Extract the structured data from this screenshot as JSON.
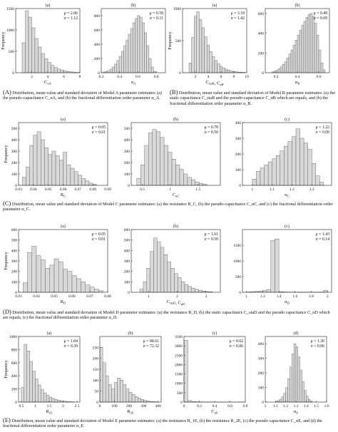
{
  "colors": {
    "bar_fill": "#d9d9d9",
    "bar_stroke": "#555555",
    "axis": "#222222",
    "text": "#111111"
  },
  "captions": {
    "A": {
      "tag": "(A)",
      "text": "Distribution, mean value and standard deviation of Model A parameter estimates: (a) the pseudo-capacitance C_αA, and (b) the fractional differentiation order parameter α_A."
    },
    "B": {
      "tag": "(B)",
      "text": "Distribution, mean value and standard deviation of Model B parameter estimates: (a) the static capacitance C_staB and the pseudo-capacitance C_αB which are equals, and (b) the fractional differentiation order parameter α_B."
    },
    "C": {
      "tag": "(C)",
      "text": "Distribution, mean value and standard deviation of Model C parameter estimates: (a) the resistance R_C, (b) the pseudo-capacitance C_αC, and (c) the fractional differentiation order parameter α_C."
    },
    "D": {
      "tag": "(D)",
      "text": "Distribution, mean value and standard deviation of Model D parameter estimates: (a) the resistance R_D, (b) the static capacitance C_staD and the pseudo capacitance C_αD which are equals, (c) the fractional differentiation order parameter α_D."
    },
    "E": {
      "tag": "(E)",
      "text": "Distribution, mean value and standard deviation of Model E parameter estimates: (a) the resistance R_1E, (b) the resistance R_2E, (c) the pseudo capacitance C_αE, and (d) the fractional differentiation order parameter α_E."
    }
  },
  "chart_data": [
    {
      "type": "bar",
      "panel": "A(a)",
      "subtitle": "(a)",
      "ylabel": "Frequency",
      "xlabel": "C_αA",
      "stats": [
        "μ = 2.06",
        "σ = 1.12"
      ],
      "xlim": [
        0,
        8
      ],
      "ylim": [
        0,
        1500
      ],
      "xticks": [
        2,
        4,
        6,
        8
      ],
      "yticks": [
        0,
        500,
        1000,
        1500
      ],
      "bin_start": 0.8,
      "bin_width": 0.4,
      "values": [
        700,
        1450,
        1300,
        1050,
        800,
        600,
        450,
        330,
        240,
        170,
        120,
        85,
        60,
        40,
        28,
        18,
        10,
        6
      ]
    },
    {
      "type": "bar",
      "panel": "A(b)",
      "subtitle": "(b)",
      "ylabel": "",
      "xlabel": "α_A",
      "stats": [
        "μ = 0.58",
        "σ = 0.11"
      ],
      "xlim": [
        0.2,
        0.9
      ],
      "ylim": [
        0,
        900
      ],
      "xticks": [
        0.2,
        0.4,
        0.6,
        0.8
      ],
      "yticks": [
        0,
        200,
        400,
        600,
        800
      ],
      "bin_start": 0.22,
      "bin_width": 0.025,
      "values": [
        10,
        18,
        30,
        50,
        80,
        120,
        170,
        230,
        300,
        380,
        460,
        540,
        620,
        700,
        760,
        800,
        780,
        700,
        560,
        380,
        200,
        80,
        20
      ]
    },
    {
      "type": "bar",
      "panel": "B(a)",
      "subtitle": "(a)",
      "ylabel": "Frequency",
      "xlabel": "C_staB, C_αB",
      "stats": [
        "μ = 3.18",
        "σ = 1.42"
      ],
      "xlim": [
        0,
        10
      ],
      "ylim": [
        0,
        1000
      ],
      "xticks": [
        2,
        4,
        6,
        8,
        10
      ],
      "yticks": [
        0,
        500,
        1000
      ],
      "bin_start": 1.0,
      "bin_width": 0.4,
      "values": [
        150,
        550,
        880,
        950,
        830,
        700,
        560,
        430,
        330,
        250,
        190,
        140,
        100,
        75,
        55,
        40,
        28,
        20,
        14,
        10,
        7,
        5
      ]
    },
    {
      "type": "bar",
      "panel": "B(b)",
      "subtitle": "(b)",
      "ylabel": "",
      "xlabel": "α_B",
      "stats": [
        "μ = 0.49",
        "σ = 0.09"
      ],
      "xlim": [
        0.1,
        0.7
      ],
      "ylim": [
        0,
        650
      ],
      "xticks": [
        0.2,
        0.4,
        0.6
      ],
      "yticks": [
        0,
        200,
        400,
        600
      ],
      "bin_start": 0.16,
      "bin_width": 0.02,
      "values": [
        8,
        15,
        25,
        40,
        60,
        85,
        110,
        150,
        190,
        230,
        280,
        330,
        380,
        430,
        480,
        520,
        560,
        590,
        600,
        570,
        500,
        380,
        230,
        100,
        30
      ]
    },
    {
      "type": "bar",
      "panel": "C(a)",
      "subtitle": "(a)",
      "ylabel": "Frequency",
      "xlabel": "R_C",
      "stats": [
        "μ = 0.05",
        "σ = 0.01"
      ],
      "xlim": [
        0.03,
        0.09
      ],
      "ylim": [
        0,
        550
      ],
      "xticks": [
        0.03,
        0.04,
        0.05,
        0.06,
        0.07,
        0.08,
        0.09
      ],
      "yticks": [
        0,
        100,
        200,
        300,
        400,
        500
      ],
      "bin_start": 0.0325,
      "bin_width": 0.0025,
      "values": [
        70,
        160,
        350,
        440,
        470,
        400,
        330,
        270,
        300,
        260,
        220,
        290,
        180,
        150,
        120,
        90,
        60,
        40,
        20,
        10
      ]
    },
    {
      "type": "bar",
      "panel": "C(b)",
      "subtitle": "(b)",
      "ylabel": "",
      "xlabel": "C_αC",
      "stats": [
        "μ = 0.78",
        "σ = 0.50"
      ],
      "xlim": [
        0.3,
        1.9
      ],
      "ylim": [
        0,
        550
      ],
      "xticks": [
        0.5,
        1,
        1.5
      ],
      "yticks": [
        0,
        100,
        200,
        300,
        400,
        500
      ],
      "bin_start": 0.4,
      "bin_width": 0.07,
      "values": [
        60,
        180,
        350,
        460,
        490,
        470,
        420,
        350,
        290,
        230,
        180,
        140,
        100,
        70,
        50,
        30,
        18,
        10
      ]
    },
    {
      "type": "bar",
      "panel": "C(c)",
      "subtitle": "(c)",
      "ylabel": "",
      "xlabel": "α_C",
      "stats": [
        "μ = 1.22",
        "σ = 0.09"
      ],
      "xlim": [
        0.95,
        1.4
      ],
      "ylim": [
        0,
        400
      ],
      "xticks": [
        1,
        1.1,
        1.2,
        1.3
      ],
      "yticks": [
        0,
        100,
        200,
        300,
        400
      ],
      "bin_start": 1.0,
      "bin_width": 0.02,
      "values": [
        40,
        90,
        110,
        130,
        150,
        170,
        190,
        220,
        250,
        280,
        310,
        360,
        300,
        270,
        230,
        140,
        60,
        20
      ]
    },
    {
      "type": "bar",
      "panel": "D(a)",
      "subtitle": "(a)",
      "ylabel": "Frequency",
      "xlabel": "R_D",
      "stats": [
        "μ = 0.05",
        "σ = 0.01"
      ],
      "xlim": [
        0.03,
        0.08
      ],
      "ylim": [
        0,
        600
      ],
      "xticks": [
        0.03,
        0.04,
        0.05,
        0.06,
        0.07,
        0.08
      ],
      "yticks": [
        0,
        100,
        200,
        300,
        400,
        500,
        600
      ],
      "bin_start": 0.0325,
      "bin_width": 0.0025,
      "values": [
        90,
        380,
        440,
        350,
        310,
        230,
        260,
        320,
        290,
        220,
        200,
        160,
        130,
        100,
        70,
        50,
        30,
        15
      ]
    },
    {
      "type": "bar",
      "panel": "D(b)",
      "subtitle": "(b)",
      "ylabel": "",
      "xlabel": "C_staD, C_αD",
      "stats": [
        "μ = 1.61",
        "σ = 0.50"
      ],
      "xlim": [
        0.4,
        3.5
      ],
      "ylim": [
        0,
        600
      ],
      "xticks": [
        1,
        2,
        3
      ],
      "yticks": [
        0,
        100,
        200,
        300,
        400,
        500,
        600
      ],
      "bin_start": 0.7,
      "bin_width": 0.12,
      "values": [
        30,
        100,
        230,
        390,
        520,
        480,
        430,
        360,
        290,
        230,
        180,
        140,
        100,
        75,
        55,
        40,
        28,
        18,
        12,
        8,
        5
      ]
    },
    {
      "type": "bar",
      "panel": "D(c)",
      "subtitle": "(c)",
      "ylabel": "",
      "xlabel": "α_D",
      "stats": [
        "μ = 1.43",
        "σ = 0.14"
      ],
      "xlim": [
        0.95,
        2.05
      ],
      "ylim": [
        0,
        2000
      ],
      "xticks": [
        1,
        1.2,
        1.4,
        1.6,
        1.8,
        2
      ],
      "yticks": [
        0,
        500,
        1000,
        1500
      ],
      "bin_start": 1.0,
      "bin_width": 0.05,
      "values": [
        10,
        20,
        30,
        40,
        60,
        90,
        1650,
        1700,
        20,
        10,
        5,
        5,
        5,
        5,
        5,
        5,
        5,
        5,
        5,
        60
      ]
    },
    {
      "type": "bar",
      "panel": "E(a)",
      "subtitle": "(a)",
      "ylabel": "Frequency",
      "xlabel": "R_1E",
      "stats": [
        "μ = 1.04",
        "σ = 0.39"
      ],
      "xlim": [
        0.4,
        2.6
      ],
      "ylim": [
        0,
        1000
      ],
      "xticks": [
        0.5,
        1,
        1.5,
        2,
        2.5
      ],
      "yticks": [
        0,
        200,
        400,
        600,
        800,
        1000
      ],
      "bin_start": 0.5,
      "bin_width": 0.1,
      "values": [
        220,
        880,
        780,
        620,
        470,
        350,
        260,
        190,
        140,
        100,
        75,
        55,
        40,
        28,
        20,
        14,
        10,
        6,
        4
      ]
    },
    {
      "type": "bar",
      "panel": "E(b)",
      "subtitle": "(b)",
      "ylabel": "",
      "xlabel": "R_2E",
      "stats": [
        "μ = 88.61",
        "σ = 72.32"
      ],
      "xlim": [
        0,
        420
      ],
      "ylim": [
        0,
        300
      ],
      "xticks": [
        0,
        100,
        200,
        300,
        400
      ],
      "yticks": [
        0,
        50,
        100,
        150,
        200,
        250
      ],
      "bin_start": 0,
      "bin_width": 20,
      "values": [
        250,
        180,
        120,
        80,
        60,
        90,
        110,
        100,
        80,
        60,
        45,
        35,
        25,
        18,
        12,
        8,
        5,
        3,
        2,
        1
      ]
    },
    {
      "type": "bar",
      "panel": "E(c)",
      "subtitle": "(c)",
      "ylabel": "",
      "xlabel": "C_αE",
      "stats": [
        "μ = 0.02",
        "σ = 0.06"
      ],
      "xlim": [
        0,
        0.8
      ],
      "ylim": [
        0,
        3500
      ],
      "xticks": [
        0,
        0.2,
        0.4,
        0.6,
        0.8
      ],
      "yticks": [
        0,
        500,
        1000,
        1500,
        2000,
        2500,
        3000,
        3500
      ],
      "bin_start": 0,
      "bin_width": 0.05,
      "values": [
        3300,
        80,
        30,
        15,
        10,
        6,
        4,
        3,
        2,
        2,
        1,
        1,
        1,
        1,
        1,
        1
      ]
    },
    {
      "type": "bar",
      "panel": "E(d)",
      "subtitle": "(d)",
      "ylabel": "",
      "xlabel": "α_E",
      "stats": [
        "μ = 1.30",
        "σ = 0.06"
      ],
      "xlim": [
        1.0,
        1.6
      ],
      "ylim": [
        0,
        450
      ],
      "xticks": [
        1,
        1.1,
        1.2,
        1.3,
        1.4,
        1.5,
        1.6
      ],
      "yticks": [
        0,
        100,
        200,
        300,
        400
      ],
      "bin_start": 1.1,
      "bin_width": 0.02,
      "values": [
        5,
        10,
        20,
        35,
        60,
        100,
        160,
        240,
        330,
        400,
        380,
        310,
        220,
        140,
        80,
        40,
        18,
        8
      ]
    }
  ]
}
